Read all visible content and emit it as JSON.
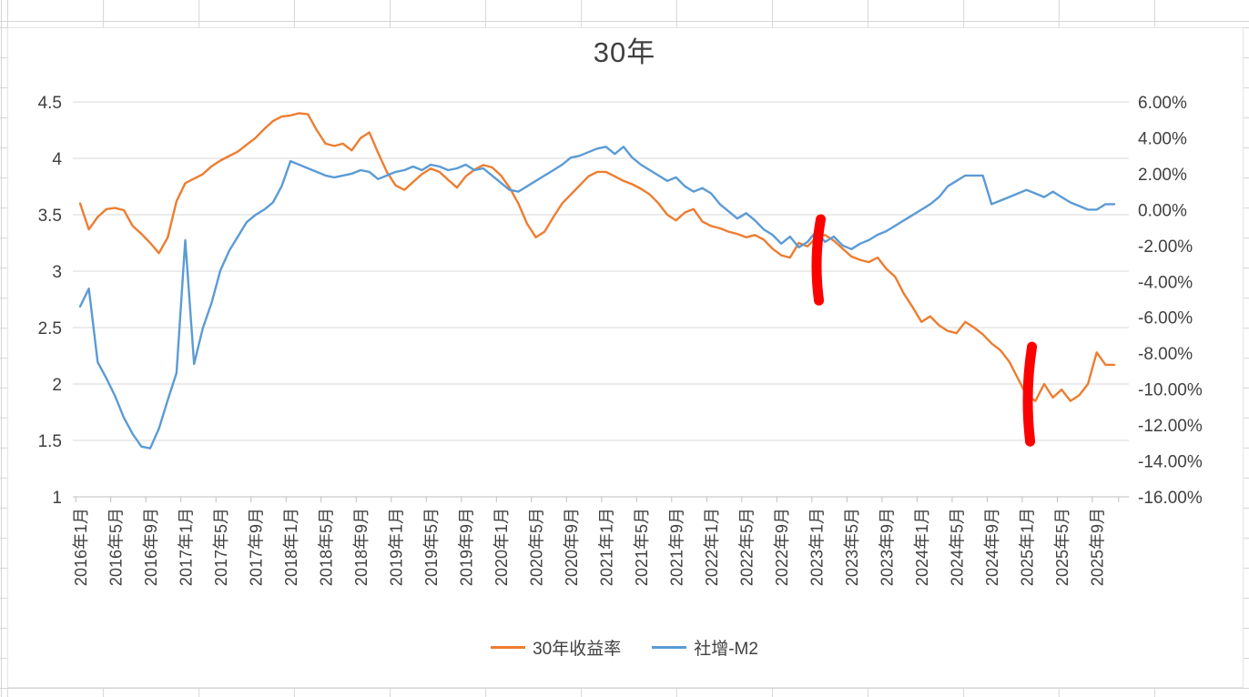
{
  "title": "30年",
  "legend": [
    {
      "label": "30年收益率",
      "color": "#ED7D31"
    },
    {
      "label": "社增-M2",
      "color": "#5B9BD5"
    }
  ],
  "chart_data": {
    "type": "line",
    "title": "30年",
    "x_tick_step": 4,
    "x_tick_labels": [
      "2016年1月",
      "2016年5月",
      "2016年9月",
      "2017年1月",
      "2017年5月",
      "2017年9月",
      "2018年1月",
      "2018年5月",
      "2018年9月",
      "2019年1月",
      "2019年5月",
      "2019年9月",
      "2020年1月",
      "2020年5月",
      "2020年9月",
      "2021年1月",
      "2021年5月",
      "2021年9月",
      "2022年1月",
      "2022年5月",
      "2022年9月",
      "2023年1月",
      "2023年5月",
      "2023年9月",
      "2024年1月",
      "2024年5月",
      "2024年9月",
      "2025年1月",
      "2025年5月",
      "2025年9月"
    ],
    "left_axis": {
      "min": 1,
      "max": 4.5,
      "step": 0.5,
      "labels": [
        "4.5",
        "4",
        "3.5",
        "3",
        "2.5",
        "2",
        "1.5",
        "1"
      ],
      "values": [
        4.5,
        4,
        3.5,
        3,
        2.5,
        2,
        1.5,
        1
      ]
    },
    "right_axis": {
      "min": -16,
      "max": 6,
      "step": 2,
      "labels": [
        "6.00%",
        "4.00%",
        "2.00%",
        "0.00%",
        "-2.00%",
        "-4.00%",
        "-6.00%",
        "-8.00%",
        "-10.00%",
        "-12.00%",
        "-14.00%",
        "-16.00%"
      ],
      "values": [
        6,
        4,
        2,
        0,
        -2,
        -4,
        -6,
        -8,
        -10,
        -12,
        -14,
        -16
      ]
    },
    "series": [
      {
        "name": "30年收益率",
        "axis": "left",
        "color": "#ED7D31",
        "values": [
          3.6,
          3.37,
          3.48,
          3.55,
          3.56,
          3.54,
          3.4,
          3.33,
          3.25,
          3.16,
          3.3,
          3.62,
          3.78,
          3.82,
          3.86,
          3.93,
          3.98,
          4.02,
          4.06,
          4.12,
          4.18,
          4.26,
          4.33,
          4.37,
          4.38,
          4.4,
          4.39,
          4.25,
          4.13,
          4.11,
          4.13,
          4.07,
          4.18,
          4.23,
          4.05,
          3.88,
          3.76,
          3.72,
          3.79,
          3.86,
          3.91,
          3.88,
          3.81,
          3.74,
          3.84,
          3.9,
          3.94,
          3.92,
          3.85,
          3.74,
          3.6,
          3.42,
          3.3,
          3.35,
          3.48,
          3.6,
          3.68,
          3.76,
          3.84,
          3.88,
          3.88,
          3.84,
          3.8,
          3.77,
          3.73,
          3.68,
          3.6,
          3.5,
          3.45,
          3.52,
          3.55,
          3.44,
          3.4,
          3.38,
          3.35,
          3.33,
          3.3,
          3.32,
          3.28,
          3.2,
          3.14,
          3.12,
          3.25,
          3.22,
          3.3,
          3.32,
          3.27,
          3.2,
          3.13,
          3.1,
          3.08,
          3.12,
          3.02,
          2.95,
          2.8,
          2.68,
          2.55,
          2.6,
          2.52,
          2.47,
          2.45,
          2.55,
          2.5,
          2.44,
          2.36,
          2.3,
          2.2,
          2.05,
          1.9,
          1.85,
          2.0,
          1.88,
          1.95,
          1.85,
          1.9,
          2.0,
          2.28,
          2.17,
          2.17
        ]
      },
      {
        "name": "社增-M2",
        "axis": "right",
        "color": "#5B9BD5",
        "values": [
          -5.4,
          -4.4,
          -8.5,
          -9.4,
          -10.4,
          -11.6,
          -12.5,
          -13.2,
          -13.3,
          -12.2,
          -10.6,
          -9.1,
          -1.7,
          -8.6,
          -6.6,
          -5.2,
          -3.4,
          -2.3,
          -1.5,
          -0.7,
          -0.3,
          0.0,
          0.4,
          1.3,
          2.7,
          2.5,
          2.3,
          2.1,
          1.9,
          1.8,
          1.9,
          2.0,
          2.2,
          2.1,
          1.7,
          1.9,
          2.1,
          2.2,
          2.4,
          2.2,
          2.5,
          2.4,
          2.2,
          2.3,
          2.5,
          2.2,
          2.3,
          1.9,
          1.5,
          1.1,
          1.0,
          1.3,
          1.6,
          1.9,
          2.2,
          2.5,
          2.9,
          3.0,
          3.2,
          3.4,
          3.5,
          3.1,
          3.5,
          2.9,
          2.5,
          2.2,
          1.9,
          1.6,
          1.8,
          1.3,
          1.0,
          1.2,
          0.9,
          0.3,
          -0.1,
          -0.5,
          -0.2,
          -0.6,
          -1.1,
          -1.4,
          -1.9,
          -1.5,
          -2.1,
          -1.8,
          -1.2,
          -1.8,
          -1.5,
          -2.0,
          -2.2,
          -1.9,
          -1.7,
          -1.4,
          -1.2,
          -0.9,
          -0.6,
          -0.3,
          0.0,
          0.3,
          0.7,
          1.3,
          1.6,
          1.9,
          1.9,
          1.9,
          0.3,
          0.5,
          0.7,
          0.9,
          1.1,
          0.9,
          0.7,
          1.0,
          0.7,
          0.4,
          0.2,
          0.0,
          0.0,
          0.3,
          0.3
        ]
      }
    ],
    "annotations": [
      {
        "name": "red-marker-2023",
        "type": "hand-drawn-stroke",
        "color": "#FF0000",
        "x_index": 84.3,
        "axis": "left",
        "from": 3.46,
        "to": 2.74
      },
      {
        "name": "red-marker-2025",
        "type": "hand-drawn-stroke",
        "color": "#FF0000",
        "x_index": 108.4,
        "axis": "left",
        "from": 2.33,
        "to": 1.49
      }
    ],
    "legend_position": "bottom",
    "grid": "horizontal"
  }
}
